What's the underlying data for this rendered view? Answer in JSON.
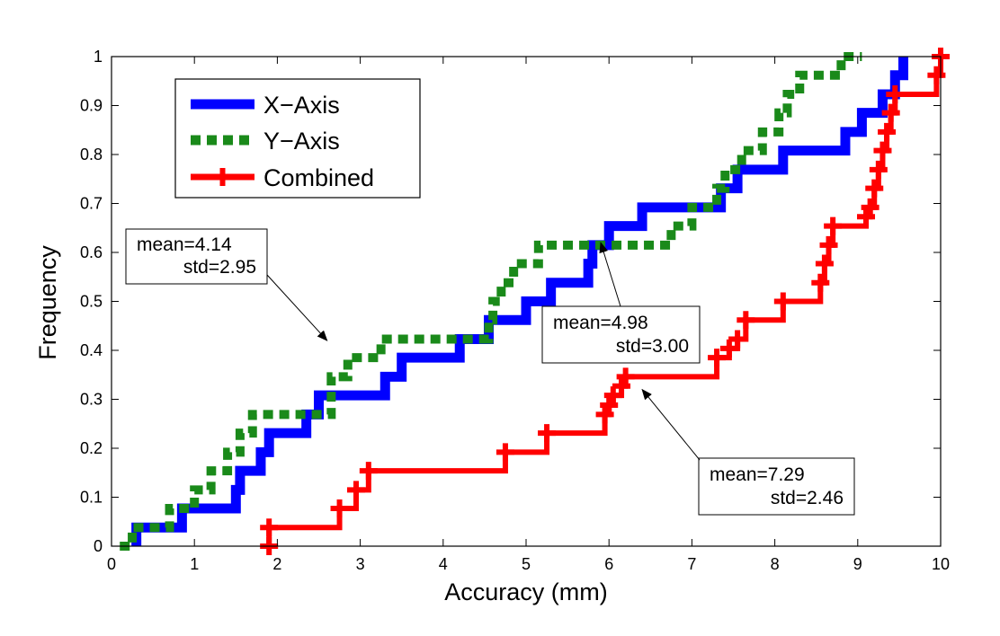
{
  "chart_data": {
    "type": "line",
    "step": true,
    "xlabel": "Accuracy (mm)",
    "ylabel": "Frequency",
    "xlim": [
      0,
      10
    ],
    "ylim": [
      0,
      1
    ],
    "xticks": [
      "0",
      "1",
      "2",
      "3",
      "4",
      "5",
      "6",
      "7",
      "8",
      "9",
      "10"
    ],
    "yticks": [
      "0",
      "0.1",
      "0.2",
      "0.3",
      "0.4",
      "0.5",
      "0.6",
      "0.7",
      "0.8",
      "0.9",
      "1"
    ],
    "grid": false,
    "legend_position": "top-left",
    "series": [
      {
        "name": "X−Axis",
        "color": "#0000ff",
        "style": "solid",
        "x": [
          0.3,
          0.3,
          0.85,
          1.5,
          1.55,
          1.8,
          1.9,
          2.35,
          2.5,
          3.3,
          3.5,
          4.2,
          4.55,
          5.0,
          5.3,
          5.75,
          5.8,
          6.0,
          6.4,
          7.35,
          7.55,
          8.1,
          8.85,
          9.05,
          9.3,
          9.45,
          9.55
        ],
        "y": [
          0.0,
          0.038,
          0.077,
          0.115,
          0.154,
          0.192,
          0.231,
          0.269,
          0.308,
          0.346,
          0.385,
          0.423,
          0.462,
          0.5,
          0.538,
          0.577,
          0.615,
          0.654,
          0.692,
          0.731,
          0.769,
          0.808,
          0.846,
          0.885,
          0.923,
          0.962,
          1.0
        ]
      },
      {
        "name": "Y−Axis",
        "color": "#1a8a1a",
        "style": "dashed",
        "x": [
          0.1,
          0.25,
          0.7,
          1.0,
          1.2,
          1.4,
          1.55,
          1.7,
          2.65,
          2.65,
          2.85,
          3.25,
          4.55,
          4.6,
          4.7,
          4.85,
          5.15,
          6.75,
          7.0,
          7.3,
          7.4,
          7.6,
          7.85,
          8.05,
          8.15,
          8.3,
          8.8,
          9.05
        ],
        "y": [
          0.0,
          0.038,
          0.077,
          0.115,
          0.154,
          0.192,
          0.231,
          0.269,
          0.308,
          0.346,
          0.385,
          0.423,
          0.462,
          0.5,
          0.538,
          0.577,
          0.615,
          0.654,
          0.692,
          0.731,
          0.769,
          0.808,
          0.846,
          0.885,
          0.923,
          0.962,
          1.0,
          1.0
        ]
      },
      {
        "name": "Combined",
        "color": "#ff0000",
        "style": "solid-plus",
        "x": [
          1.9,
          1.9,
          2.75,
          2.95,
          3.1,
          4.75,
          5.25,
          5.95,
          6.0,
          6.05,
          6.15,
          6.2,
          7.3,
          7.45,
          7.55,
          7.65,
          8.1,
          8.55,
          8.6,
          8.65,
          8.7,
          9.1,
          9.15,
          9.2,
          9.25,
          9.3,
          9.35,
          9.4,
          9.45,
          9.95,
          10.0
        ],
        "y": [
          0.0,
          0.038,
          0.077,
          0.115,
          0.154,
          0.192,
          0.231,
          0.269,
          0.288,
          0.308,
          0.327,
          0.346,
          0.385,
          0.404,
          0.423,
          0.462,
          0.5,
          0.538,
          0.577,
          0.615,
          0.654,
          0.673,
          0.692,
          0.731,
          0.769,
          0.808,
          0.846,
          0.885,
          0.923,
          0.962,
          1.0
        ]
      }
    ],
    "annotations": [
      {
        "line1": "mean=4.14",
        "line2": "std=2.95",
        "arrow_to": [
          2.6,
          0.42
        ]
      },
      {
        "line1": "mean=4.98",
        "line2": "std=3.00",
        "arrow_to": [
          5.9,
          0.62
        ]
      },
      {
        "line1": "mean=7.29",
        "line2": "std=2.46",
        "arrow_to": [
          6.4,
          0.32
        ]
      }
    ]
  }
}
